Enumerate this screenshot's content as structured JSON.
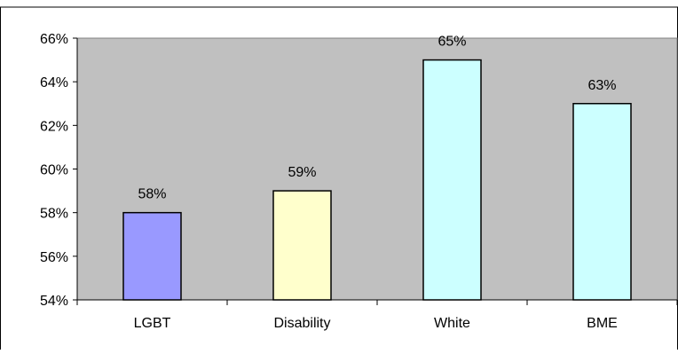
{
  "chart_data": {
    "type": "bar",
    "categories": [
      "LGBT",
      "Disability",
      "White",
      "BME"
    ],
    "values": [
      58,
      59,
      65,
      63
    ],
    "data_labels": [
      "58%",
      "59%",
      "65%",
      "63%"
    ],
    "bar_colors": [
      "#9999ff",
      "#ffffcc",
      "#ccffff",
      "#ccffff"
    ],
    "ylim": [
      54,
      66
    ],
    "yticks": [
      54,
      56,
      58,
      60,
      62,
      64,
      66
    ],
    "ytick_labels": [
      "54%",
      "56%",
      "58%",
      "60%",
      "62%",
      "64%",
      "66%"
    ],
    "plot_background": "#c0c0c0",
    "grid": false,
    "legend": "none"
  }
}
